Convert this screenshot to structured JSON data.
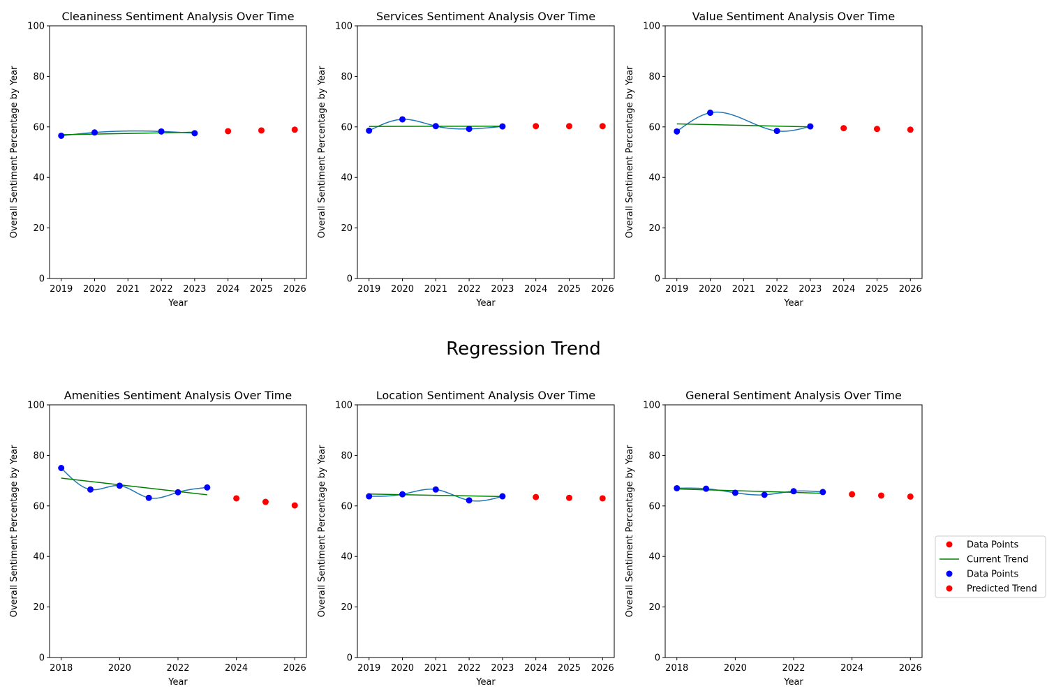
{
  "suptitle": "Regression Trend",
  "colors": {
    "smooth": "#1f77b4",
    "trend": "#008000",
    "actual": "#0000ff",
    "predicted": "#ff0000"
  },
  "legend": {
    "placement": "right of bottom-right panel",
    "entries": [
      {
        "label": "Data Points",
        "kind": "predicted"
      },
      {
        "label": "Current Trend",
        "kind": "trend"
      },
      {
        "label": "Data Points",
        "kind": "actual"
      },
      {
        "label": "Predicted Trend",
        "kind": "predicted"
      }
    ]
  },
  "chart_data": [
    {
      "type": "scatter",
      "title": "Cleaniness Sentiment Analysis Over Time",
      "xlabel": "Year",
      "ylabel": "Overall Sentiment Percentage by Year",
      "xlim": [
        2018.65,
        2026.35
      ],
      "ylim": [
        0,
        100
      ],
      "xticks": [
        "2019",
        "2020",
        "2021",
        "2022",
        "2023",
        "2024",
        "2025",
        "2026"
      ],
      "yticks": [
        "0",
        "20",
        "40",
        "60",
        "80",
        "100"
      ],
      "actual": {
        "x": [
          2019,
          2020,
          2022,
          2023
        ],
        "y": [
          56.5,
          57.8,
          58.2,
          57.5
        ]
      },
      "trend": {
        "x": [
          2019,
          2023
        ],
        "y": [
          56.9,
          57.9
        ]
      },
      "predicted": {
        "x": [
          2024,
          2025,
          2026
        ],
        "y": [
          58.3,
          58.6,
          58.9
        ]
      }
    },
    {
      "type": "scatter",
      "title": "Services Sentiment Analysis Over Time",
      "xlabel": "Year",
      "ylabel": "Overall Sentiment Percentage by Year",
      "xlim": [
        2018.65,
        2026.35
      ],
      "ylim": [
        0,
        100
      ],
      "xticks": [
        "2019",
        "2020",
        "2021",
        "2022",
        "2023",
        "2024",
        "2025",
        "2026"
      ],
      "yticks": [
        "0",
        "20",
        "40",
        "60",
        "80",
        "100"
      ],
      "actual": {
        "x": [
          2019,
          2020,
          2021,
          2022,
          2023
        ],
        "y": [
          58.5,
          63.0,
          60.3,
          59.2,
          60.2
        ]
      },
      "trend": {
        "x": [
          2019,
          2023
        ],
        "y": [
          60.2,
          60.3
        ]
      },
      "predicted": {
        "x": [
          2024,
          2025,
          2026
        ],
        "y": [
          60.3,
          60.3,
          60.3
        ]
      }
    },
    {
      "type": "scatter",
      "title": "Value Sentiment Analysis Over Time",
      "xlabel": "Year",
      "ylabel": "Overall Sentiment Percentage by Year",
      "xlim": [
        2018.65,
        2026.35
      ],
      "ylim": [
        0,
        100
      ],
      "xticks": [
        "2019",
        "2020",
        "2021",
        "2022",
        "2023",
        "2024",
        "2025",
        "2026"
      ],
      "yticks": [
        "0",
        "20",
        "40",
        "60",
        "80",
        "100"
      ],
      "actual": {
        "x": [
          2019,
          2020,
          2022,
          2023
        ],
        "y": [
          58.2,
          65.6,
          58.4,
          60.2
        ]
      },
      "trend": {
        "x": [
          2019,
          2023
        ],
        "y": [
          61.2,
          60.0
        ]
      },
      "predicted": {
        "x": [
          2024,
          2025,
          2026
        ],
        "y": [
          59.5,
          59.2,
          58.9
        ]
      }
    },
    {
      "type": "scatter",
      "title": "Amenities Sentiment Analysis Over Time",
      "xlabel": "Year",
      "ylabel": "Overall Sentiment Percentage by Year",
      "xlim": [
        2017.6,
        2026.4
      ],
      "ylim": [
        0,
        100
      ],
      "xticks": [
        "2018",
        "2020",
        "2022",
        "2024",
        "2026"
      ],
      "yticks": [
        "0",
        "20",
        "40",
        "60",
        "80",
        "100"
      ],
      "actual": {
        "x": [
          2018,
          2019,
          2020,
          2021,
          2022,
          2023
        ],
        "y": [
          75.0,
          66.5,
          68.0,
          63.2,
          65.4,
          67.3
        ]
      },
      "trend": {
        "x": [
          2018,
          2023
        ],
        "y": [
          71.0,
          64.4
        ]
      },
      "predicted": {
        "x": [
          2024,
          2025,
          2026
        ],
        "y": [
          63.0,
          61.6,
          60.2
        ]
      }
    },
    {
      "type": "scatter",
      "title": "Location Sentiment Analysis Over Time",
      "xlabel": "Year",
      "ylabel": "Overall Sentiment Percentage by Year",
      "xlim": [
        2018.65,
        2026.35
      ],
      "ylim": [
        0,
        100
      ],
      "xticks": [
        "2019",
        "2020",
        "2021",
        "2022",
        "2023",
        "2024",
        "2025",
        "2026"
      ],
      "yticks": [
        "0",
        "20",
        "40",
        "60",
        "80",
        "100"
      ],
      "actual": {
        "x": [
          2019,
          2020,
          2021,
          2022,
          2023
        ],
        "y": [
          63.8,
          64.6,
          66.5,
          62.2,
          63.8
        ]
      },
      "trend": {
        "x": [
          2019,
          2023
        ],
        "y": [
          64.7,
          63.7
        ]
      },
      "predicted": {
        "x": [
          2024,
          2025,
          2026
        ],
        "y": [
          63.5,
          63.2,
          63.0
        ]
      }
    },
    {
      "type": "scatter",
      "title": "General Sentiment Analysis Over Time",
      "xlabel": "Year",
      "ylabel": "Overall Sentiment Percentage by Year",
      "xlim": [
        2017.6,
        2026.4
      ],
      "ylim": [
        0,
        100
      ],
      "xticks": [
        "2018",
        "2020",
        "2022",
        "2024",
        "2026"
      ],
      "yticks": [
        "0",
        "20",
        "40",
        "60",
        "80",
        "100"
      ],
      "actual": {
        "x": [
          2018,
          2019,
          2020,
          2021,
          2022,
          2023
        ],
        "y": [
          67.0,
          66.8,
          65.2,
          64.4,
          65.8,
          65.5
        ]
      },
      "trend": {
        "x": [
          2018,
          2023
        ],
        "y": [
          66.7,
          65.0
        ]
      },
      "predicted": {
        "x": [
          2024,
          2025,
          2026
        ],
        "y": [
          64.6,
          64.1,
          63.7
        ]
      }
    }
  ]
}
